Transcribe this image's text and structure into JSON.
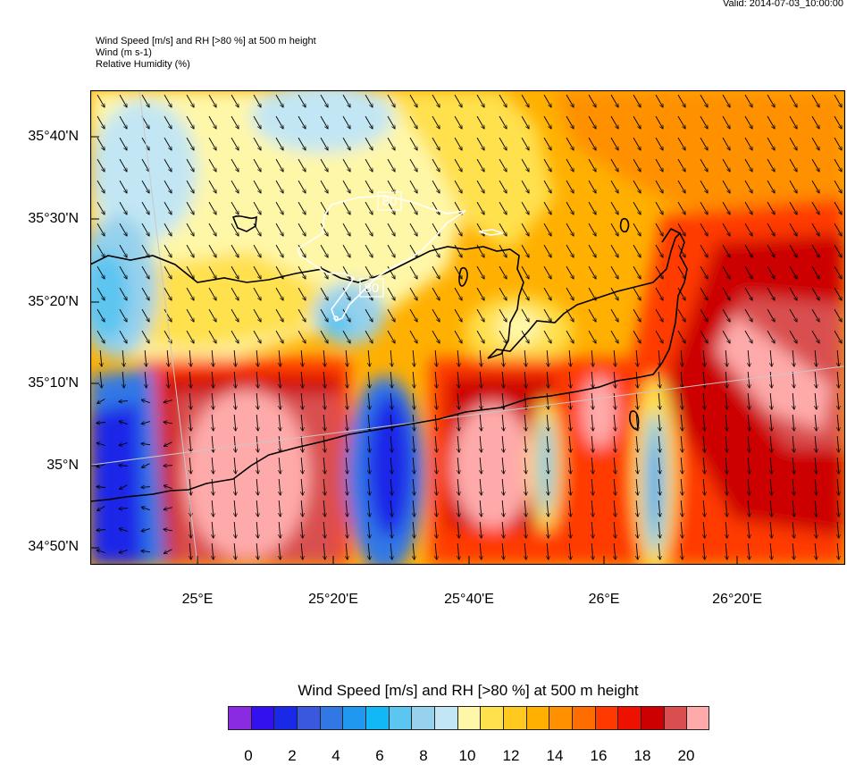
{
  "valid_time": "Valid: 2014-07-03_10:00:00",
  "titles": {
    "line1": "Wind Speed [m/s] and RH [>80 %] at 500 m height",
    "line2": "Wind   (m s-1)",
    "line3": "Relative Humidity   (%)"
  },
  "map": {
    "lat_labels": [
      "35°40'N",
      "35°30'N",
      "35°20'N",
      "35°10'N",
      "35°N",
      "34°50'N"
    ],
    "lon_labels": [
      "25°E",
      "25°20'E",
      "25°40'E",
      "26°E",
      "26°20'E"
    ],
    "contour_labels": [
      "80",
      "80"
    ],
    "rh_contour_color": "#ffffff",
    "coastline_color": "#000000"
  },
  "colorbar": {
    "title": "Wind Speed [m/s] and RH [>80 %] at 500 m height",
    "colors": [
      "#8a2be2",
      "#3311ee",
      "#1a28e8",
      "#3a58dd",
      "#3178e5",
      "#2198f0",
      "#12b8f5",
      "#5cc5f0",
      "#96d1ed",
      "#c2e6f3",
      "#fff7a8",
      "#ffe04d",
      "#ffc91f",
      "#ffb000",
      "#ff9000",
      "#ff6c00",
      "#ff3a00",
      "#ee1100",
      "#cc0000",
      "#d94f4f",
      "#ffaaaa"
    ],
    "tick_labels": [
      "0",
      "2",
      "4",
      "6",
      "8",
      "10",
      "12",
      "14",
      "16",
      "18",
      "20"
    ]
  }
}
